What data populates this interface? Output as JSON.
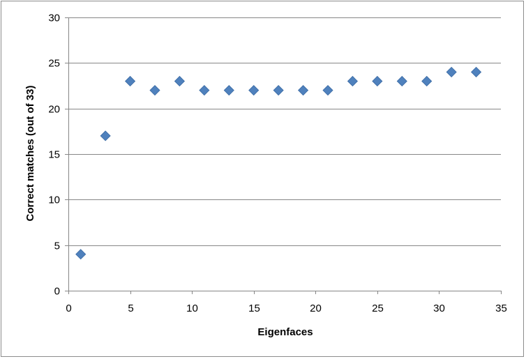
{
  "chart_data": {
    "type": "scatter",
    "title": "",
    "xlabel": "Eigenfaces",
    "ylabel": "Correct matches (out of 33)",
    "xlim": [
      0,
      35
    ],
    "ylim": [
      0,
      30
    ],
    "xticks": [
      0,
      5,
      10,
      15,
      20,
      25,
      30,
      35
    ],
    "yticks": [
      0,
      5,
      10,
      15,
      20,
      25,
      30
    ],
    "grid": "horizontal",
    "legend": "none",
    "marker": "diamond",
    "color": "#4F81BD",
    "series": [
      {
        "x": [
          1,
          3,
          5,
          7,
          9,
          11,
          13,
          15,
          17,
          19,
          21,
          23,
          25,
          27,
          29,
          31,
          33
        ],
        "y": [
          4,
          17,
          23,
          22,
          23,
          22,
          22,
          22,
          22,
          22,
          22,
          23,
          23,
          23,
          23,
          24,
          24
        ]
      }
    ]
  }
}
